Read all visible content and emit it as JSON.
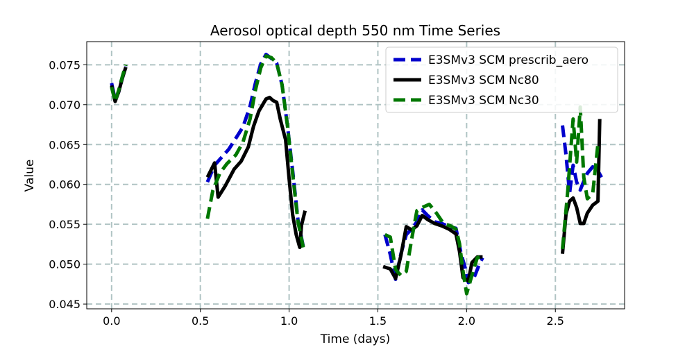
{
  "chart_data": {
    "type": "line",
    "title": "Aerosol optical depth 550 nm Time Series",
    "xlabel": "Time (days)",
    "ylabel": "Value",
    "xlim": [
      -0.14,
      2.89
    ],
    "ylim": [
      0.0444,
      0.0779
    ],
    "grid": true,
    "legend_position": "top-right",
    "xticks": [
      0.0,
      0.5,
      1.0,
      1.5,
      2.0,
      2.5
    ],
    "xtick_labels": [
      "0.0",
      "0.5",
      "1.0",
      "1.5",
      "2.0",
      "2.5"
    ],
    "yticks": [
      0.045,
      0.05,
      0.055,
      0.06,
      0.065,
      0.07,
      0.075
    ],
    "ytick_labels": [
      "0.045",
      "0.050",
      "0.055",
      "0.060",
      "0.065",
      "0.070",
      "0.075"
    ],
    "series": [
      {
        "name": "E3SMv3 SCM prescrib_aero",
        "color": "#0000cc",
        "style": "dashed",
        "segments": [
          [
            [
              0.0,
              0.0727
            ],
            [
              0.02,
              0.0706
            ],
            [
              0.04,
              0.0716
            ],
            [
              0.06,
              0.0733
            ],
            [
              0.08,
              0.0748
            ]
          ],
          [
            [
              0.54,
              0.0603
            ],
            [
              0.58,
              0.0624
            ],
            [
              0.62,
              0.0634
            ],
            [
              0.66,
              0.0644
            ],
            [
              0.7,
              0.0658
            ],
            [
              0.74,
              0.0672
            ],
            [
              0.78,
              0.0698
            ],
            [
              0.81,
              0.0727
            ],
            [
              0.84,
              0.0751
            ],
            [
              0.87,
              0.0763
            ],
            [
              0.9,
              0.0758
            ],
            [
              0.93,
              0.0752
            ],
            [
              0.96,
              0.0725
            ],
            [
              0.99,
              0.0675
            ],
            [
              1.02,
              0.0617
            ],
            [
              1.05,
              0.0555
            ],
            [
              1.08,
              0.0522
            ]
          ],
          [
            [
              1.54,
              0.0537
            ],
            [
              1.57,
              0.0512
            ],
            [
              1.6,
              0.0481
            ],
            [
              1.63,
              0.0513
            ],
            [
              1.66,
              0.0537
            ],
            [
              1.69,
              0.0544
            ],
            [
              1.72,
              0.0553
            ],
            [
              1.75,
              0.0568
            ],
            [
              1.78,
              0.0561
            ],
            [
              1.82,
              0.0553
            ],
            [
              1.86,
              0.0551
            ],
            [
              1.9,
              0.0547
            ],
            [
              1.94,
              0.0545
            ],
            [
              1.97,
              0.0512
            ],
            [
              1.99,
              0.0497
            ],
            [
              2.01,
              0.0477
            ],
            [
              2.04,
              0.0482
            ],
            [
              2.07,
              0.0499
            ],
            [
              2.09,
              0.0508
            ]
          ],
          [
            [
              2.54,
              0.0674
            ],
            [
              2.56,
              0.0637
            ],
            [
              2.58,
              0.0589
            ],
            [
              2.6,
              0.0624
            ],
            [
              2.62,
              0.0603
            ],
            [
              2.64,
              0.0593
            ],
            [
              2.66,
              0.0604
            ],
            [
              2.68,
              0.0614
            ],
            [
              2.71,
              0.0622
            ],
            [
              2.74,
              0.0617
            ],
            [
              2.76,
              0.0609
            ]
          ]
        ]
      },
      {
        "name": "E3SMv3 SCM Nc80",
        "color": "#000000",
        "style": "solid",
        "segments": [
          [
            [
              0.0,
              0.0724
            ],
            [
              0.02,
              0.0704
            ],
            [
              0.04,
              0.0716
            ],
            [
              0.06,
              0.0733
            ],
            [
              0.08,
              0.0747
            ]
          ],
          [
            [
              0.54,
              0.0609
            ],
            [
              0.58,
              0.0627
            ],
            [
              0.6,
              0.0584
            ],
            [
              0.64,
              0.0598
            ],
            [
              0.69,
              0.0619
            ],
            [
              0.73,
              0.0629
            ],
            [
              0.77,
              0.0647
            ],
            [
              0.8,
              0.0673
            ],
            [
              0.83,
              0.0692
            ],
            [
              0.87,
              0.0707
            ],
            [
              0.89,
              0.0709
            ],
            [
              0.91,
              0.0705
            ],
            [
              0.93,
              0.0703
            ],
            [
              0.95,
              0.0682
            ],
            [
              0.98,
              0.0656
            ],
            [
              1.0,
              0.0607
            ],
            [
              1.02,
              0.0562
            ],
            [
              1.04,
              0.0537
            ],
            [
              1.06,
              0.0521
            ],
            [
              1.07,
              0.0549
            ],
            [
              1.09,
              0.0567
            ]
          ],
          [
            [
              1.53,
              0.0497
            ],
            [
              1.57,
              0.0494
            ],
            [
              1.6,
              0.0482
            ],
            [
              1.63,
              0.0511
            ],
            [
              1.66,
              0.0547
            ],
            [
              1.69,
              0.0543
            ],
            [
              1.72,
              0.0548
            ],
            [
              1.75,
              0.0561
            ],
            [
              1.78,
              0.0556
            ],
            [
              1.82,
              0.0551
            ],
            [
              1.86,
              0.0548
            ],
            [
              1.9,
              0.0544
            ],
            [
              1.94,
              0.0538
            ],
            [
              1.96,
              0.0516
            ],
            [
              1.98,
              0.0483
            ],
            [
              2.01,
              0.0479
            ],
            [
              2.03,
              0.0502
            ],
            [
              2.06,
              0.0509
            ],
            [
              2.09,
              0.0509
            ]
          ],
          [
            [
              2.54,
              0.0513
            ],
            [
              2.56,
              0.0563
            ],
            [
              2.58,
              0.0579
            ],
            [
              2.6,
              0.0583
            ],
            [
              2.62,
              0.0571
            ],
            [
              2.64,
              0.0551
            ],
            [
              2.66,
              0.0551
            ],
            [
              2.68,
              0.0564
            ],
            [
              2.71,
              0.0574
            ],
            [
              2.74,
              0.0579
            ],
            [
              2.75,
              0.0682
            ]
          ]
        ]
      },
      {
        "name": "E3SMv3 SCM Nc30",
        "color": "#007700",
        "style": "dashed",
        "segments": [
          [
            [
              0.0,
              0.0722
            ],
            [
              0.02,
              0.0704
            ],
            [
              0.04,
              0.0718
            ],
            [
              0.06,
              0.0735
            ],
            [
              0.08,
              0.075
            ]
          ],
          [
            [
              0.54,
              0.0557
            ],
            [
              0.57,
              0.0592
            ],
            [
              0.61,
              0.0614
            ],
            [
              0.65,
              0.0626
            ],
            [
              0.7,
              0.0637
            ],
            [
              0.74,
              0.0653
            ],
            [
              0.78,
              0.0682
            ],
            [
              0.81,
              0.0718
            ],
            [
              0.84,
              0.0746
            ],
            [
              0.87,
              0.0761
            ],
            [
              0.9,
              0.0759
            ],
            [
              0.93,
              0.0752
            ],
            [
              0.96,
              0.0725
            ],
            [
              0.99,
              0.0675
            ],
            [
              1.02,
              0.0613
            ],
            [
              1.05,
              0.0553
            ],
            [
              1.08,
              0.0521
            ]
          ],
          [
            [
              1.54,
              0.0537
            ],
            [
              1.57,
              0.0534
            ],
            [
              1.6,
              0.0493
            ],
            [
              1.63,
              0.0486
            ],
            [
              1.66,
              0.0491
            ],
            [
              1.69,
              0.0531
            ],
            [
              1.72,
              0.0567
            ],
            [
              1.75,
              0.0571
            ],
            [
              1.79,
              0.0575
            ],
            [
              1.83,
              0.0564
            ],
            [
              1.87,
              0.0551
            ],
            [
              1.91,
              0.0548
            ],
            [
              1.94,
              0.0544
            ],
            [
              1.96,
              0.0526
            ],
            [
              1.98,
              0.0491
            ],
            [
              2.0,
              0.0463
            ],
            [
              2.03,
              0.0486
            ],
            [
              2.06,
              0.0508
            ],
            [
              2.09,
              0.051
            ]
          ],
          [
            [
              2.54,
              0.0519
            ],
            [
              2.57,
              0.0593
            ],
            [
              2.6,
              0.0682
            ],
            [
              2.62,
              0.0628
            ],
            [
              2.64,
              0.0697
            ],
            [
              2.66,
              0.0609
            ],
            [
              2.68,
              0.0582
            ],
            [
              2.71,
              0.0588
            ],
            [
              2.74,
              0.0651
            ]
          ]
        ]
      }
    ]
  }
}
